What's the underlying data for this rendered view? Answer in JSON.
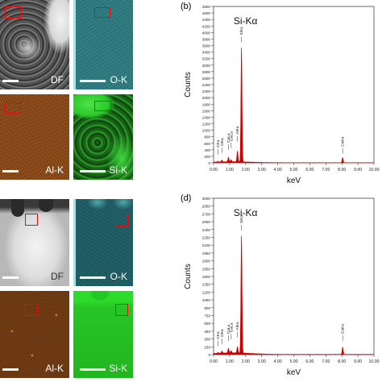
{
  "maps": {
    "top": {
      "df": "DF",
      "ok": "O-K",
      "alk": "Al-K",
      "sik": "Si-K"
    },
    "bottom": {
      "df": "DF",
      "ok": "O-K",
      "alk": "Al-K",
      "sik": "Si-K"
    },
    "colors": {
      "oxygen": "#2e7f86",
      "aluminum": "#c76a22",
      "silicon": "#22c51f",
      "roi": "#e01010"
    }
  },
  "chart_data": [
    {
      "panel_label": "(b)",
      "type": "line",
      "annotation": "Si-Kα",
      "xlabel": "keV",
      "ylabel": "Counts",
      "xlim": [
        0,
        10
      ],
      "ylim": [
        0,
        4800
      ],
      "xticks": [
        "0.00",
        "1.00",
        "2.00",
        "3.00",
        "4.00",
        "5.00",
        "6.00",
        "7.00",
        "8.00",
        "9.00",
        "10.00"
      ],
      "yticks": [
        "0",
        "200",
        "400",
        "600",
        "800",
        "1000",
        "1200",
        "1400",
        "1600",
        "1800",
        "2000",
        "2200",
        "2400",
        "2600",
        "2800",
        "3000",
        "3200",
        "3400",
        "3600",
        "3800",
        "4000",
        "4200",
        "4400",
        "4600",
        "4800"
      ],
      "peak_labels": [
        {
          "text": "CKa",
          "x": 0.28,
          "y": 200
        },
        {
          "text": "OKa",
          "x": 0.52,
          "y": 250
        },
        {
          "text": "CuLa",
          "x": 0.93,
          "y": 350
        },
        {
          "text": "GaLa",
          "x": 1.1,
          "y": 400
        },
        {
          "text": "AlKa",
          "x": 1.49,
          "y": 600
        },
        {
          "text": "SiKa",
          "x": 1.74,
          "y": 3650
        },
        {
          "text": "CuKa",
          "x": 8.05,
          "y": 230
        }
      ],
      "peaks": [
        {
          "x": 0.28,
          "y": 20
        },
        {
          "x": 0.52,
          "y": 60
        },
        {
          "x": 0.93,
          "y": 140
        },
        {
          "x": 1.1,
          "y": 60
        },
        {
          "x": 1.49,
          "y": 330
        },
        {
          "x": 1.74,
          "y": 3500
        },
        {
          "x": 8.05,
          "y": 160
        }
      ],
      "color": "#cc0000"
    },
    {
      "panel_label": "(d)",
      "type": "line",
      "annotation": "Si-Kα",
      "xlabel": "keV",
      "ylabel": "Counts",
      "xlim": [
        0,
        10
      ],
      "ylim": [
        0,
        3000
      ],
      "xticks": [
        "0.00",
        "1.00",
        "2.00",
        "3.00",
        "4.00",
        "5.00",
        "6.00",
        "7.00",
        "8.00",
        "9.00",
        "10.00"
      ],
      "yticks": [
        "0",
        "150",
        "300",
        "450",
        "600",
        "750",
        "900",
        "1050",
        "1200",
        "1350",
        "1500",
        "1650",
        "1800",
        "1950",
        "2100",
        "2250",
        "2400",
        "2550",
        "2700",
        "2850",
        "3000"
      ],
      "peak_labels": [
        {
          "text": "CKa",
          "x": 0.28,
          "y": 130
        },
        {
          "text": "OKa",
          "x": 0.52,
          "y": 170
        },
        {
          "text": "CuLa",
          "x": 0.93,
          "y": 230
        },
        {
          "text": "GaLa",
          "x": 1.1,
          "y": 260
        },
        {
          "text": "AlKa",
          "x": 1.49,
          "y": 300
        },
        {
          "text": "SiKa",
          "x": 1.74,
          "y": 2350
        },
        {
          "text": "CuKa",
          "x": 8.05,
          "y": 230
        }
      ],
      "peaks": [
        {
          "x": 0.28,
          "y": 15
        },
        {
          "x": 0.52,
          "y": 40
        },
        {
          "x": 0.93,
          "y": 90
        },
        {
          "x": 1.1,
          "y": 40
        },
        {
          "x": 1.49,
          "y": 120
        },
        {
          "x": 1.74,
          "y": 2250
        },
        {
          "x": 8.05,
          "y": 140
        }
      ],
      "color": "#cc0000"
    }
  ]
}
